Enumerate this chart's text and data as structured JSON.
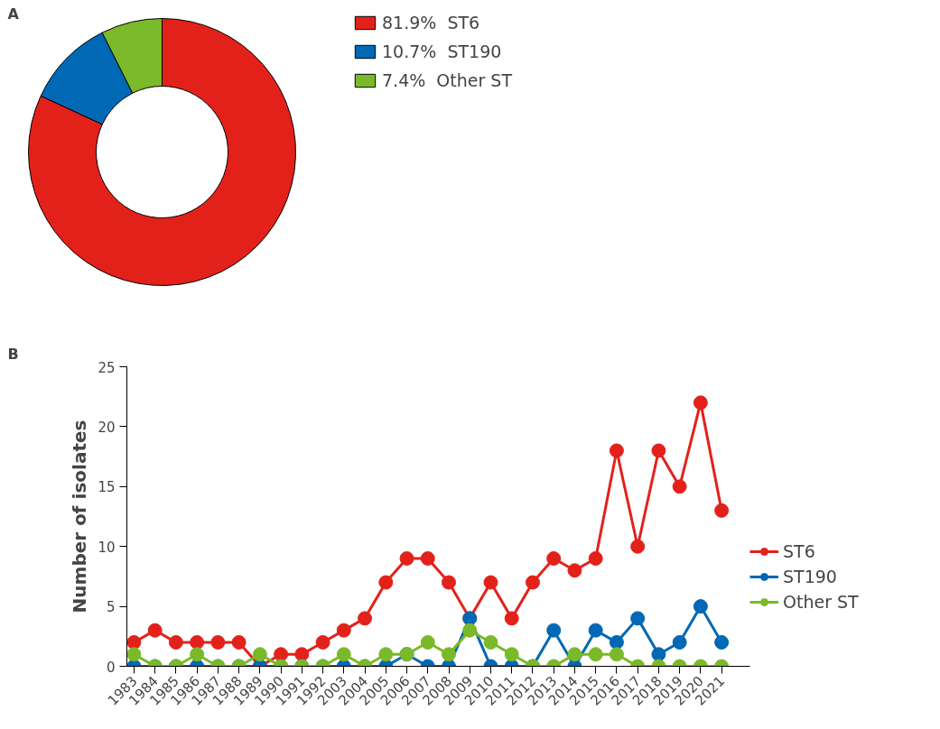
{
  "chart_data": [
    {
      "type": "donut",
      "title": "A",
      "categories": [
        "81.9%  ST6",
        "10.7%  ST190",
        "7.4%  Other ST"
      ],
      "values": [
        81.9,
        10.7,
        7.4
      ],
      "colors": [
        "#e3211b",
        "#0068b4",
        "#7ab929"
      ],
      "legend": "right"
    },
    {
      "type": "line",
      "title": "B",
      "ylabel": "Number of isolates",
      "categories": [
        "1983",
        "1984",
        "1985",
        "1986",
        "1987",
        "1988",
        "1989",
        "1990",
        "1991",
        "1992",
        "2003",
        "2004",
        "2005",
        "2006",
        "2007",
        "2008",
        "2009",
        "2010",
        "2011",
        "2012",
        "2013",
        "2014",
        "2015",
        "2016",
        "2017",
        "2018",
        "2019",
        "2020",
        "2021"
      ],
      "series": [
        {
          "name": "ST6",
          "color": "#e3211b",
          "values": [
            2,
            3,
            2,
            2,
            2,
            2,
            0,
            1,
            1,
            2,
            3,
            4,
            7,
            9,
            9,
            7,
            4,
            7,
            4,
            7,
            9,
            8,
            9,
            18,
            10,
            18,
            15,
            22,
            13
          ]
        },
        {
          "name": "ST190",
          "color": "#0068b4",
          "values": [
            0,
            0,
            0,
            0,
            0,
            0,
            0,
            0,
            0,
            0,
            0,
            0,
            0,
            1,
            0,
            0,
            4,
            0,
            0,
            0,
            3,
            0,
            3,
            2,
            4,
            1,
            2,
            5,
            2
          ]
        },
        {
          "name": "Other ST",
          "color": "#7ab929",
          "values": [
            1,
            0,
            0,
            1,
            0,
            0,
            1,
            0,
            0,
            0,
            1,
            0,
            1,
            1,
            2,
            1,
            3,
            2,
            1,
            0,
            0,
            1,
            1,
            1,
            0,
            0,
            0,
            0,
            0
          ]
        }
      ],
      "ylim": [
        0,
        25
      ],
      "yticks": [
        0,
        5,
        10,
        15,
        20,
        25
      ],
      "grid": false,
      "marker": "circle",
      "line_style": "solid",
      "legend": "right"
    }
  ]
}
